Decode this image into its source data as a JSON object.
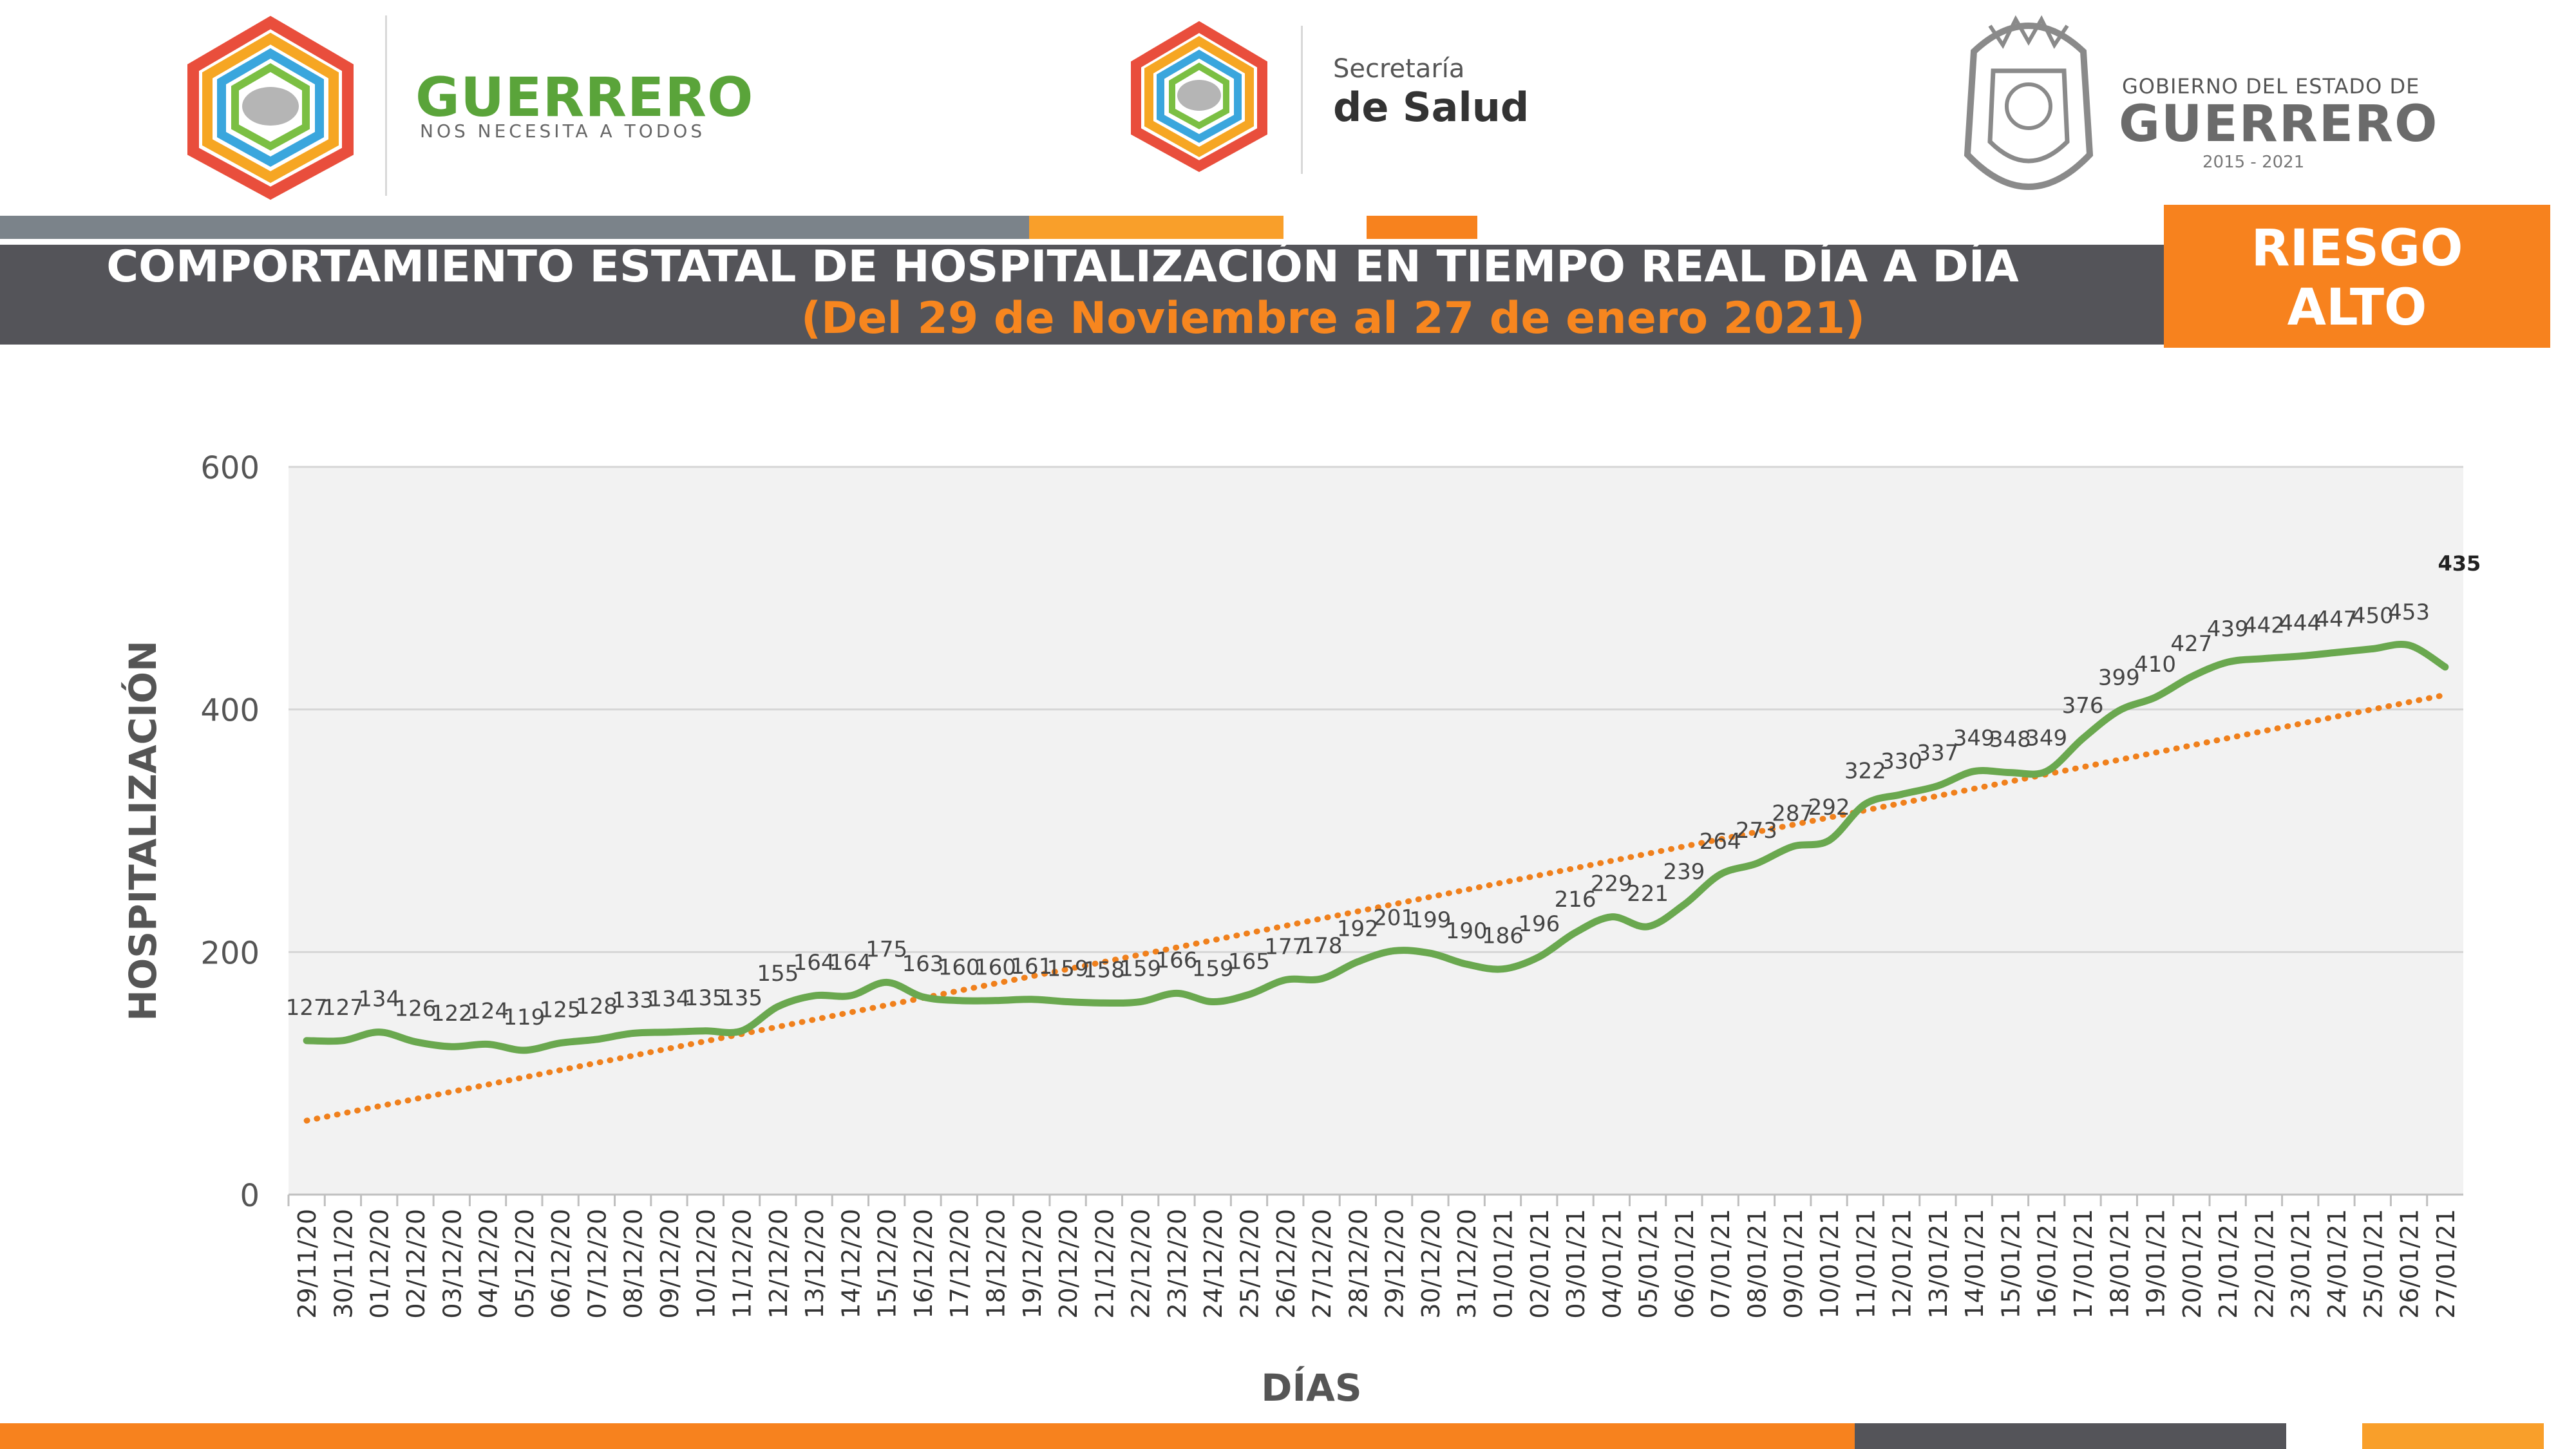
{
  "header": {
    "guerrero_logo": {
      "title": "GUERRERO",
      "subtitle": "NOS NECESITA A TODOS"
    },
    "salud_logo": {
      "line1": "Secretaría",
      "line2": "de Salud"
    },
    "gobierno_logo": {
      "line1": "GOBIERNO DEL ESTADO DE",
      "line2": "GUERRERO",
      "line3": "2015 - 2021"
    }
  },
  "title": {
    "main": "COMPORTAMIENTO ESTATAL DE HOSPITALIZACIÓN EN TIEMPO REAL DÍA A DÍA",
    "subtitle": "(Del 29 de Noviembre al 27 de enero 2021)"
  },
  "risk_badge": {
    "line1": "RIESGO",
    "line2": "ALTO"
  },
  "colors": {
    "gray_band": "#545459",
    "orange": "#f7821e",
    "light_orange": "#f99f2a",
    "line_green": "#6aa84f",
    "trend_orange": "#f0801c",
    "plot_bg": "#f2f2f2"
  },
  "chart_data": {
    "type": "line",
    "xlabel": "DÍAS",
    "ylabel": "HOSPITALIZACIÓN",
    "ylim": [
      0,
      600
    ],
    "yticks": [
      0,
      200,
      400,
      600
    ],
    "grid": true,
    "trendline": {
      "type": "linear",
      "style": "dotted",
      "start": 61,
      "end": 412
    },
    "categories": [
      "29/11/20",
      "30/11/20",
      "01/12/20",
      "02/12/20",
      "03/12/20",
      "04/12/20",
      "05/12/20",
      "06/12/20",
      "07/12/20",
      "08/12/20",
      "09/12/20",
      "10/12/20",
      "11/12/20",
      "12/12/20",
      "13/12/20",
      "14/12/20",
      "15/12/20",
      "16/12/20",
      "17/12/20",
      "18/12/20",
      "19/12/20",
      "20/12/20",
      "21/12/20",
      "22/12/20",
      "23/12/20",
      "24/12/20",
      "25/12/20",
      "26/12/20",
      "27/12/20",
      "28/12/20",
      "29/12/20",
      "30/12/20",
      "31/12/20",
      "01/01/21",
      "02/01/21",
      "03/01/21",
      "04/01/21",
      "05/01/21",
      "06/01/21",
      "07/01/21",
      "08/01/21",
      "09/01/21",
      "10/01/21",
      "11/01/21",
      "12/01/21",
      "13/01/21",
      "14/01/21",
      "15/01/21",
      "16/01/21",
      "17/01/21",
      "18/01/21",
      "19/01/21",
      "20/01/21",
      "21/01/21",
      "22/01/21",
      "23/01/21",
      "24/01/21",
      "25/01/21",
      "26/01/21",
      "27/01/21"
    ],
    "values": [
      127,
      127,
      134,
      126,
      122,
      124,
      119,
      125,
      128,
      133,
      134,
      135,
      135,
      155,
      164,
      164,
      175,
      163,
      160,
      160,
      161,
      159,
      158,
      159,
      166,
      159,
      165,
      177,
      178,
      192,
      201,
      199,
      190,
      186,
      196,
      216,
      229,
      221,
      239,
      264,
      273,
      287,
      292,
      322,
      330,
      337,
      349,
      348,
      349,
      376,
      399,
      410,
      427,
      439,
      442,
      444,
      447,
      450,
      453,
      435
    ]
  }
}
